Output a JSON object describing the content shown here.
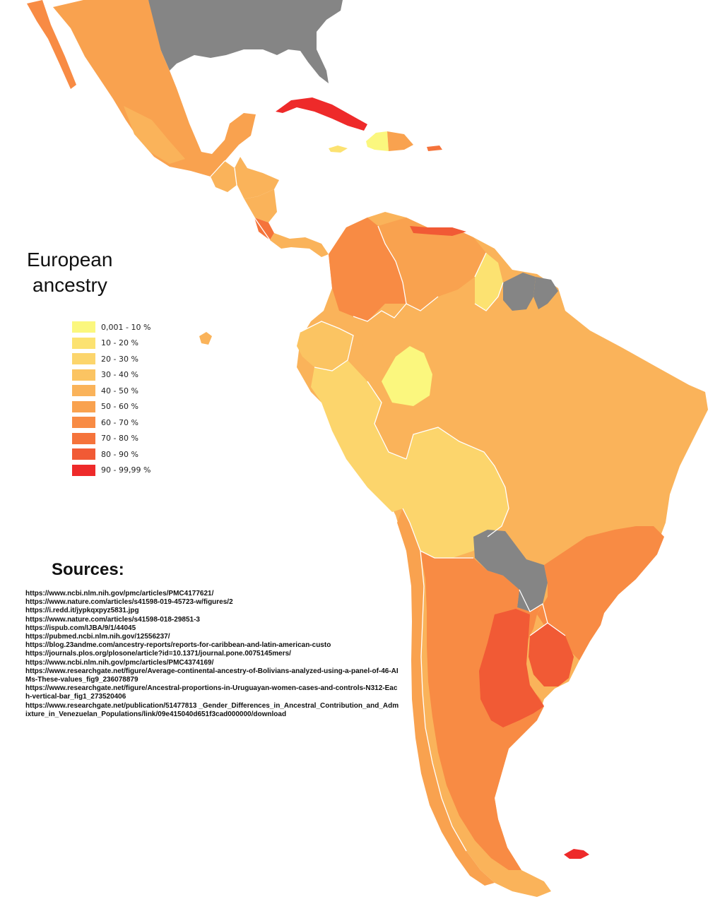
{
  "title": [
    "European",
    "ancestry"
  ],
  "legend": [
    {
      "label": "0,001 - 10 %",
      "color": "#fbf77e"
    },
    {
      "label": "10 - 20 %",
      "color": "#fce271"
    },
    {
      "label": "20 - 30 %",
      "color": "#fcd56c"
    },
    {
      "label": "30 - 40 %",
      "color": "#fbc462"
    },
    {
      "label": "40 - 50 %",
      "color": "#fab35a"
    },
    {
      "label": "50 - 60 %",
      "color": "#f9a24f"
    },
    {
      "label": "60 - 70 %",
      "color": "#f88b44"
    },
    {
      "label": "70 - 80 %",
      "color": "#f5733b"
    },
    {
      "label": "80 - 90 %",
      "color": "#f15a35"
    },
    {
      "label": "90 - 99,99 %",
      "color": "#ee2a2a"
    }
  ],
  "no_data_color": "#858585",
  "sources_title": "Sources:",
  "sources": [
    "https://www.ncbi.nlm.nih.gov/pmc/articles/PMC4177621/",
    "https://www.nature.com/articles/s41598-019-45723-w/figures/2",
    "https://i.redd.it/jypkqxpyz5831.jpg",
    "https://www.nature.com/articles/s41598-018-29851-3",
    "https://ispub.com/IJBA/9/1/44045",
    "https://pubmed.ncbi.nlm.nih.gov/12556237/",
    "https://blog.23andme.com/ancestry-reports/reports-for-caribbean-and-latin-american-custo",
    "https://journals.plos.org/plosone/article?id=10.1371/journal.pone.0075145mers/",
    "https://www.ncbi.nlm.nih.gov/pmc/articles/PMC4374169/",
    "https://www.researchgate.net/figure/Average-continental-ancestry-of-Bolivians-analyzed-using-a-panel-of-46-AIMs-These-values_fig9_236078879",
    "https://www.researchgate.net/figure/Ancestral-proportions-in-Uruguayan-women-cases-and-controls-N312-Each-vertical-bar_fig1_273520406",
    "https://www.researchgate.net/publication/51477813 _Gender_Differences_in_Ancestral_Contribution_and_Admixture_in_Venezuelan_Populations/link/09e415040d651f3cad000000/download"
  ]
}
